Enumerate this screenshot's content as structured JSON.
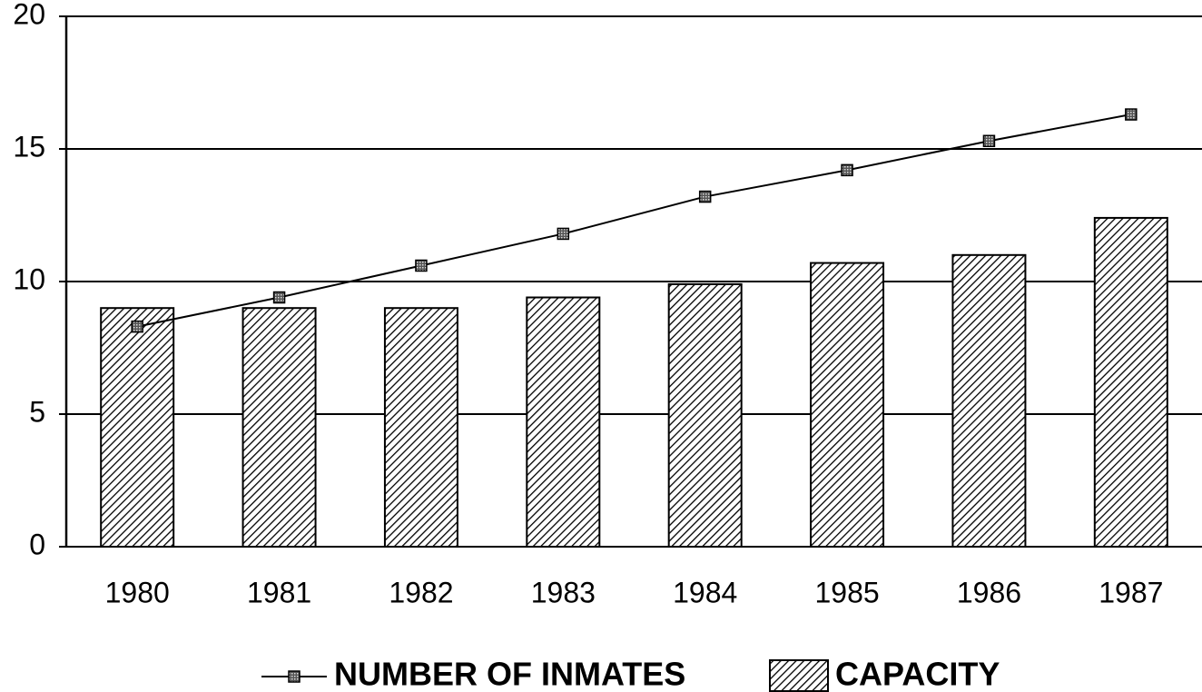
{
  "chart_data": {
    "type": "bar",
    "categories": [
      "1980",
      "1981",
      "1982",
      "1983",
      "1984",
      "1985",
      "1986",
      "1987"
    ],
    "series": [
      {
        "name": "NUMBER OF INMATES",
        "type": "line",
        "color": "#000000",
        "values": [
          8.3,
          9.4,
          10.6,
          11.8,
          13.2,
          14.2,
          15.3,
          16.3
        ]
      },
      {
        "name": "CAPACITY",
        "type": "bar",
        "color": "#000000",
        "values": [
          9.0,
          9.0,
          9.0,
          9.4,
          9.9,
          10.7,
          11.0,
          12.4
        ]
      }
    ],
    "ylim": [
      0,
      20
    ],
    "yticks": [
      0,
      5,
      10,
      15,
      20
    ],
    "grid": true,
    "legend": "bottom"
  }
}
